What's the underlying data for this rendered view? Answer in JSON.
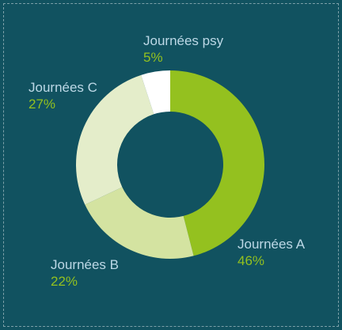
{
  "chart_data": {
    "type": "pie",
    "style": "donut",
    "title": "",
    "slices": [
      {
        "label": "Journées A",
        "value": 46,
        "value_label": "46%",
        "color": "#94c11f"
      },
      {
        "label": "Journées B",
        "value": 22,
        "value_label": "22%",
        "color": "#d4e3a1"
      },
      {
        "label": "Journées C",
        "value": 27,
        "value_label": "27%",
        "color": "#e4edca"
      },
      {
        "label": "Journées psy",
        "value": 5,
        "value_label": "5%",
        "color": "#ffffff"
      }
    ],
    "legend": "none",
    "background": "#115260",
    "label_color": "#bcd8e6",
    "value_color": "#94c11f"
  }
}
